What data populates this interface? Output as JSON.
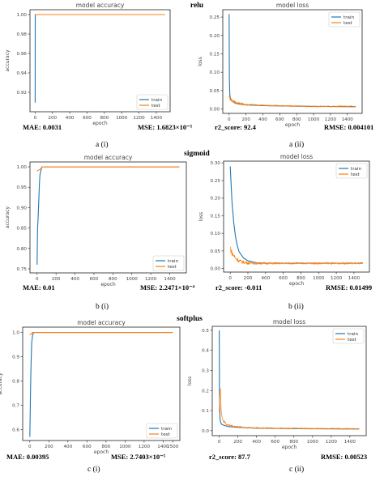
{
  "chart_data": [
    {
      "id": "a-i",
      "type": "line",
      "activation": "relu",
      "panel": "acc",
      "title": "model accuracy",
      "xlabel": "epoch",
      "ylabel": "accuracy",
      "xlim": [
        -60,
        1560
      ],
      "ylim": [
        0.9,
        1.005
      ],
      "xticks": [
        0,
        200,
        400,
        600,
        800,
        1000,
        1200,
        1400
      ],
      "yticks": [
        0.92,
        0.94,
        0.96,
        0.98,
        1.0
      ],
      "yfmt": 2,
      "legend": {
        "position": "bottom-right",
        "entries": [
          "train",
          "test"
        ]
      },
      "metric_left": "MAE:  0.0031",
      "metric_right": "MSE: 1.6823×10⁻⁵",
      "caption": "a (i)",
      "series": [
        {
          "name": "train",
          "color": "#1f77b4",
          "x": [
            0,
            1,
            2,
            1500
          ],
          "y": [
            0.9094,
            1.0,
            1.0,
            1.0
          ]
        },
        {
          "name": "test",
          "color": "#ff7f0e",
          "x": [
            0,
            1500
          ],
          "y": [
            1.0,
            1.0
          ]
        }
      ]
    },
    {
      "id": "a-ii",
      "type": "line",
      "activation": "relu",
      "panel": "loss",
      "title": "model loss",
      "xlabel": "epoch",
      "ylabel": "loss",
      "xlim": [
        -75,
        1575
      ],
      "ylim": [
        -0.012,
        0.27
      ],
      "xticks": [
        0,
        200,
        400,
        600,
        800,
        1000,
        1200,
        1400
      ],
      "yticks": [
        0.0,
        0.05,
        0.1,
        0.15,
        0.2,
        0.25
      ],
      "yfmt": 2,
      "legend": {
        "position": "top-right",
        "entries": [
          "train",
          "test"
        ]
      },
      "metric_left": "r2_score: 92.4",
      "metric_right": "RMSE: 0.004101",
      "caption": "a (ii)",
      "series": [
        {
          "name": "train",
          "color": "#1f77b4",
          "x": [
            0,
            3,
            8,
            15,
            30,
            60,
            100,
            200,
            400,
            700,
            1000,
            1500
          ],
          "y": [
            0.258,
            0.08,
            0.04,
            0.028,
            0.022,
            0.017,
            0.014,
            0.011,
            0.009,
            0.008,
            0.007,
            0.006
          ]
        },
        {
          "name": "test",
          "color": "#ff7f0e",
          "noisy": true,
          "amp": 0.012,
          "x": [
            0,
            10,
            30,
            60,
            100,
            200,
            400,
            700,
            1000,
            1500
          ],
          "y": [
            0.035,
            0.03,
            0.024,
            0.02,
            0.016,
            0.012,
            0.01,
            0.008,
            0.007,
            0.007
          ]
        }
      ]
    },
    {
      "id": "b-i",
      "type": "line",
      "activation": "sigmoid",
      "panel": "acc",
      "title": "model accuracy",
      "xlabel": "epoch",
      "ylabel": "accuracy",
      "xlim": [
        -75,
        1575
      ],
      "ylim": [
        0.74,
        1.012
      ],
      "xticks": [
        0,
        200,
        400,
        600,
        800,
        1000,
        1200,
        1400
      ],
      "yticks": [
        0.75,
        0.8,
        0.85,
        0.9,
        0.95,
        1.0
      ],
      "yfmt": 2,
      "legend": {
        "position": "bottom-right",
        "entries": [
          "train",
          "test"
        ]
      },
      "metric_left": "MAE:  0.01",
      "metric_right": "MSE: 2.2471×10⁻⁴",
      "caption": "b (i)",
      "series": [
        {
          "name": "train",
          "color": "#1f77b4",
          "x": [
            0,
            5,
            10,
            15,
            20,
            25,
            30,
            40,
            50,
            60,
            80,
            1500
          ],
          "y": [
            0.76,
            0.85,
            0.87,
            0.9,
            0.93,
            0.96,
            0.98,
            0.99,
            1.0,
            1.0,
            1.0,
            1.0
          ]
        },
        {
          "name": "test",
          "color": "#ff7f0e",
          "x": [
            0,
            40,
            50,
            1500
          ],
          "y": [
            0.99,
            0.995,
            1.0,
            1.0
          ]
        }
      ]
    },
    {
      "id": "b-ii",
      "type": "line",
      "activation": "sigmoid",
      "panel": "loss",
      "title": "model loss",
      "xlabel": "epoch",
      "ylabel": "loss",
      "xlim": [
        -75,
        1575
      ],
      "ylim": [
        -0.01,
        0.305
      ],
      "xticks": [
        0,
        200,
        400,
        600,
        800,
        1000,
        1200,
        1400
      ],
      "yticks": [
        0.0,
        0.05,
        0.1,
        0.15,
        0.2,
        0.25,
        0.3
      ],
      "yfmt": 2,
      "legend": {
        "position": "top-right",
        "entries": [
          "train",
          "test"
        ]
      },
      "metric_left": "r2_score: -0.011",
      "metric_right": "RMSE: 0.01499",
      "caption": "b (ii)",
      "series": [
        {
          "name": "train",
          "color": "#1f77b4",
          "x": [
            0,
            10,
            20,
            40,
            60,
            80,
            100,
            150,
            200,
            300,
            400,
            1500
          ],
          "y": [
            0.29,
            0.24,
            0.19,
            0.13,
            0.09,
            0.065,
            0.048,
            0.03,
            0.022,
            0.016,
            0.015,
            0.015
          ]
        },
        {
          "name": "test",
          "color": "#ff7f0e",
          "noisy": true,
          "amp": 0.018,
          "x": [
            0,
            10,
            30,
            60,
            100,
            150,
            200,
            300,
            1500
          ],
          "y": [
            0.06,
            0.05,
            0.04,
            0.03,
            0.022,
            0.018,
            0.016,
            0.015,
            0.015
          ]
        }
      ]
    },
    {
      "id": "c-i",
      "type": "line",
      "activation": "softplus",
      "panel": "acc",
      "title": "model accuracy",
      "xlabel": "epoch",
      "ylabel": "accuracy",
      "xlim": [
        -75,
        1575
      ],
      "ylim": [
        0.555,
        1.022
      ],
      "xticks": [
        0,
        200,
        400,
        600,
        800,
        1000,
        1200,
        1400,
        1500
      ],
      "xticklabels": [
        "0",
        "200",
        "400",
        "600",
        "800",
        "1000",
        "1200",
        "1400",
        "1500"
      ],
      "yticks": [
        0.6,
        0.7,
        0.8,
        0.9,
        1.0
      ],
      "yfmt": 1,
      "legend": {
        "position": "bottom-right",
        "entries": [
          "train",
          "test"
        ]
      },
      "metric_left": "MAE:  0.00395",
      "metric_right": "MSE: 2.7403×10⁻⁵",
      "caption": "c (i)",
      "series": [
        {
          "name": "train",
          "color": "#1f77b4",
          "x": [
            0,
            5,
            10,
            15,
            20,
            30,
            40,
            1500
          ],
          "y": [
            0.57,
            0.7,
            0.82,
            0.9,
            0.96,
            0.99,
            1.0,
            1.0
          ]
        },
        {
          "name": "test",
          "color": "#ff7f0e",
          "x": [
            0,
            30,
            1500
          ],
          "y": [
            0.99,
            1.0,
            1.0
          ]
        }
      ]
    },
    {
      "id": "c-ii",
      "type": "line",
      "activation": "softplus",
      "panel": "loss",
      "title": "model loss",
      "xlabel": "epoch",
      "ylabel": "loss",
      "xlim": [
        -75,
        1575
      ],
      "ylim": [
        -0.025,
        0.52
      ],
      "xticks": [
        0,
        200,
        400,
        600,
        800,
        1000,
        1200,
        1400
      ],
      "yticks": [
        0.0,
        0.1,
        0.2,
        0.3,
        0.4,
        0.5
      ],
      "yfmt": 1,
      "legend": {
        "position": "top-right",
        "entries": [
          "train",
          "test"
        ]
      },
      "metric_left": "r2_score: 87.7",
      "metric_right": "RMSE: 0.00523",
      "caption": "c (ii)",
      "series": [
        {
          "name": "train",
          "color": "#1f77b4",
          "x": [
            0,
            3,
            8,
            15,
            30,
            60,
            100,
            200,
            400,
            800,
            1500
          ],
          "y": [
            0.5,
            0.15,
            0.06,
            0.04,
            0.03,
            0.025,
            0.02,
            0.016,
            0.012,
            0.01,
            0.008
          ]
        },
        {
          "name": "test",
          "color": "#ff7f0e",
          "noisy": true,
          "amp": 0.02,
          "x": [
            0,
            10,
            20,
            40,
            80,
            150,
            300,
            600,
            1000,
            1500
          ],
          "y": [
            0.1,
            0.23,
            0.1,
            0.05,
            0.03,
            0.022,
            0.015,
            0.012,
            0.01,
            0.009
          ]
        }
      ]
    }
  ]
}
